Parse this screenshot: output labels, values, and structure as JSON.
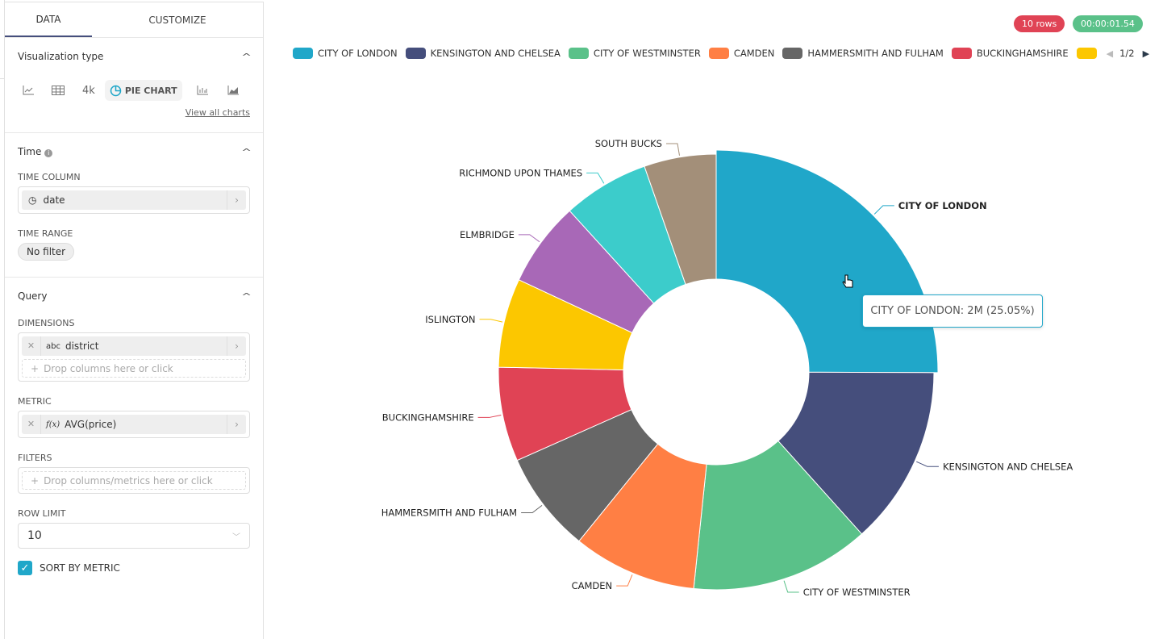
{
  "tabs": [
    "DATA",
    "CUSTOMIZE"
  ],
  "viz": {
    "title": "Visualization type",
    "icons": [
      "line-chart-icon",
      "table-icon",
      "big-number-icon",
      "pie-chart-icon",
      "bar-chart-icon",
      "area-chart-icon"
    ],
    "big_number": "4k",
    "selected": "PIE CHART",
    "view_all": "View all charts"
  },
  "time": {
    "title": "Time",
    "column_label": "TIME COLUMN",
    "column_value": "date",
    "range_label": "TIME RANGE",
    "range_value": "No filter"
  },
  "query": {
    "title": "Query",
    "dimensions_label": "DIMENSIONS",
    "dimension_type": "abc",
    "dimension_value": "district",
    "dimensions_placeholder": "Drop columns here or click",
    "metric_label": "METRIC",
    "metric_type": "f(x)",
    "metric_value": "AVG(price)",
    "filters_label": "FILTERS",
    "filters_placeholder": "Drop columns/metrics here or click",
    "row_limit_label": "ROW LIMIT",
    "row_limit_value": "10",
    "sort_label": "SORT BY METRIC",
    "sort_checked": true
  },
  "status": {
    "rows": "10 rows",
    "duration": "00:00:01.54",
    "rows_color": "#E04355",
    "duration_color": "#5AC189"
  },
  "legend_page": "1/2",
  "tooltip": "CITY OF LONDON: 2M (25.05%)",
  "chart_data": {
    "type": "pie",
    "donut": true,
    "legend_placement": "top",
    "categories": [
      "CITY OF LONDON",
      "KENSINGTON AND CHELSEA",
      "CITY OF WESTMINSTER",
      "CAMDEN",
      "HAMMERSMITH AND FULHAM",
      "BUCKINGHAMSHIRE",
      "ISLINGTON",
      "ELMBRIDGE",
      "RICHMOND UPON THAMES",
      "SOUTH BUCKS"
    ],
    "values_percent": [
      25.05,
      13.3,
      13.3,
      9.2,
      7.5,
      7.0,
      6.6,
      6.3,
      6.4,
      5.35
    ],
    "colors": [
      "#20A7C9",
      "#454E7C",
      "#5AC189",
      "#FF7F44",
      "#666666",
      "#E04355",
      "#FCC700",
      "#A868B7",
      "#3CCCCB",
      "#A38F79"
    ],
    "highlighted": "CITY OF LONDON"
  }
}
